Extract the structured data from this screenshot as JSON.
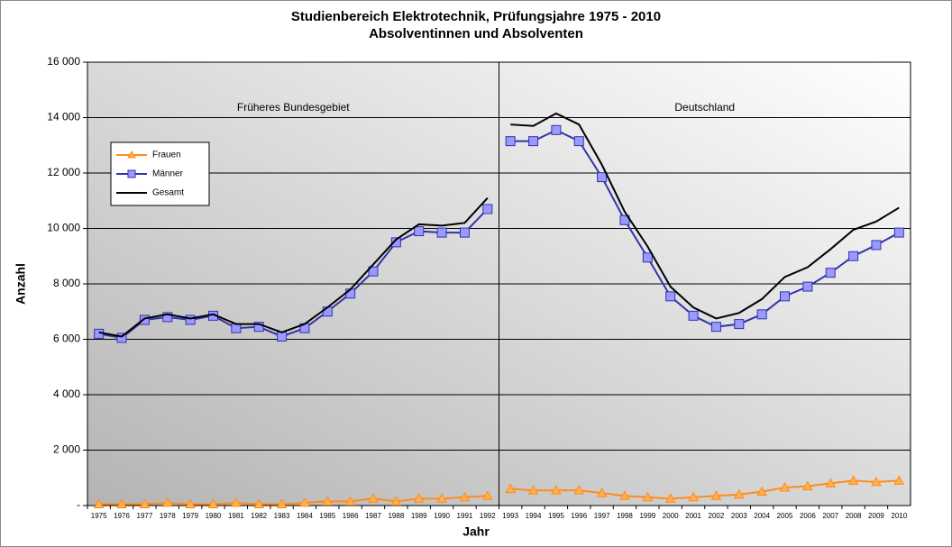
{
  "chart_data": {
    "type": "line",
    "title": [
      "Studienbereich Elektrotechnik, Prüfungsjahre 1975 - 2010",
      "Absolventinnen und Absolventen"
    ],
    "xlabel": "Jahr",
    "ylabel": "Anzahl",
    "categories": [
      "1975",
      "1976",
      "1977",
      "1978",
      "1979",
      "1980",
      "1981",
      "1982",
      "1983",
      "1984",
      "1985",
      "1986",
      "1987",
      "1988",
      "1989",
      "1990",
      "1991",
      "1992",
      "1993",
      "1994",
      "1995",
      "1996",
      "1997",
      "1998",
      "1999",
      "2000",
      "2001",
      "2002",
      "2003",
      "2004",
      "2005",
      "2006",
      "2007",
      "2008",
      "2009",
      "2010"
    ],
    "regions": [
      {
        "label": "Früheres Bundesgebiet",
        "first": "1975",
        "last": "1992"
      },
      {
        "label": "Deutschland",
        "first": "1993",
        "last": "2010"
      }
    ],
    "series": [
      {
        "name": "Frauen",
        "color": "#ff8c1a",
        "marker": "triangle",
        "marker_fill": "#ffb050",
        "values": [
          50,
          50,
          50,
          100,
          50,
          50,
          100,
          50,
          50,
          100,
          150,
          150,
          250,
          150,
          250,
          250,
          300,
          350,
          600,
          550,
          550,
          550,
          450,
          350,
          300,
          250,
          300,
          350,
          400,
          500,
          650,
          700,
          800,
          900,
          850,
          900
        ]
      },
      {
        "name": "Männer",
        "color": "#3333aa",
        "marker": "square",
        "marker_fill": "#9999ff",
        "values": [
          6200,
          6050,
          6700,
          6800,
          6700,
          6850,
          6400,
          6450,
          6100,
          6400,
          7000,
          7650,
          8450,
          9500,
          9900,
          9850,
          9850,
          10700,
          13150,
          13150,
          13550,
          13150,
          11850,
          10300,
          8950,
          7550,
          6850,
          6450,
          6550,
          6900,
          7550,
          7900,
          8400,
          9000,
          9400,
          9850
        ]
      },
      {
        "name": "Gesamt",
        "color": "#000000",
        "marker": "none",
        "values": [
          6250,
          6100,
          6750,
          6900,
          6750,
          6900,
          6550,
          6550,
          6250,
          6550,
          7150,
          7800,
          8700,
          9600,
          10150,
          10100,
          10200,
          11100,
          13750,
          13700,
          14150,
          13750,
          12300,
          10600,
          9350,
          7900,
          7150,
          6750,
          6950,
          7450,
          8250,
          8600,
          9250,
          9950,
          10250,
          10750
        ]
      }
    ],
    "ylim": [
      0,
      16000
    ],
    "yticks": [
      {
        "value": 0,
        "label": "-"
      },
      {
        "value": 2000,
        "label": "2 000"
      },
      {
        "value": 4000,
        "label": "4 000"
      },
      {
        "value": 6000,
        "label": "6 000"
      },
      {
        "value": 8000,
        "label": "8 000"
      },
      {
        "value": 10000,
        "label": "10 000"
      },
      {
        "value": 12000,
        "label": "12 000"
      },
      {
        "value": 14000,
        "label": "14 000"
      },
      {
        "value": 16000,
        "label": "16 000"
      }
    ],
    "grid": true,
    "legend": "upper left"
  }
}
